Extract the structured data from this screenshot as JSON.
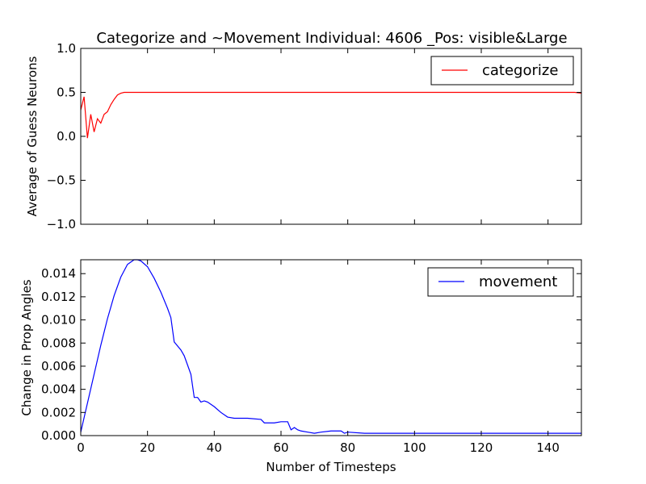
{
  "chart_data": [
    {
      "type": "line",
      "title": "Categorize and ~Movement Individual: 4606 _Pos: visible&Large",
      "xlabel": "",
      "ylabel": "Average of Guess Neurons",
      "xlim": [
        0,
        150
      ],
      "ylim": [
        -1.0,
        1.0
      ],
      "xticks": [
        0,
        20,
        40,
        60,
        80,
        100,
        120,
        140
      ],
      "xtick_labels_visible": false,
      "yticks": [
        -1.0,
        -0.5,
        0.0,
        0.5,
        1.0
      ],
      "ytick_labels": [
        "−1.0",
        "−0.5",
        "0.0",
        "0.5",
        "1.0"
      ],
      "grid": false,
      "legend": "top-right",
      "series": [
        {
          "name": "categorize",
          "color": "#ff0000",
          "x": [
            0,
            1,
            2,
            3,
            4,
            5,
            6,
            7,
            8,
            9,
            10,
            11,
            12,
            13,
            14,
            15,
            20,
            40,
            60,
            80,
            100,
            120,
            140,
            148,
            150
          ],
          "y": [
            0.3,
            0.45,
            -0.02,
            0.25,
            0.05,
            0.2,
            0.15,
            0.25,
            0.28,
            0.36,
            0.42,
            0.47,
            0.49,
            0.5,
            0.5,
            0.5,
            0.5,
            0.5,
            0.5,
            0.5,
            0.5,
            0.5,
            0.5,
            0.5,
            0.49
          ]
        }
      ]
    },
    {
      "type": "line",
      "title": "",
      "xlabel": "Number of Timesteps",
      "ylabel": "Change in Prop Angles",
      "xlim": [
        0,
        150
      ],
      "ylim": [
        0,
        0.0152
      ],
      "xticks": [
        0,
        20,
        40,
        60,
        80,
        100,
        120,
        140
      ],
      "xtick_labels": [
        "0",
        "20",
        "40",
        "60",
        "80",
        "100",
        "120",
        "140"
      ],
      "yticks": [
        0.0,
        0.002,
        0.004,
        0.006,
        0.008,
        0.01,
        0.012,
        0.014
      ],
      "ytick_labels": [
        "0.000",
        "0.002",
        "0.004",
        "0.006",
        "0.008",
        "0.010",
        "0.012",
        "0.014"
      ],
      "grid": false,
      "legend": "top-right",
      "series": [
        {
          "name": "movement",
          "color": "#0000ff",
          "x": [
            0,
            2,
            4,
            6,
            8,
            10,
            12,
            14,
            16,
            17,
            18,
            20,
            22,
            24,
            26,
            27,
            28,
            30,
            31,
            32,
            33,
            34,
            35,
            36,
            37,
            38,
            40,
            42,
            44,
            46,
            50,
            54,
            55,
            58,
            60,
            62,
            63,
            64,
            65,
            66,
            68,
            70,
            72,
            75,
            78,
            79,
            80,
            85,
            90,
            100,
            104,
            110,
            120,
            130,
            140,
            150
          ],
          "y": [
            0.0003,
            0.0028,
            0.0053,
            0.0078,
            0.0101,
            0.0121,
            0.0137,
            0.0148,
            0.0152,
            0.0152,
            0.0151,
            0.0146,
            0.0136,
            0.0124,
            0.011,
            0.0102,
            0.0081,
            0.0074,
            0.0069,
            0.0061,
            0.0053,
            0.0033,
            0.0033,
            0.0029,
            0.003,
            0.0029,
            0.0025,
            0.002,
            0.0016,
            0.0015,
            0.0015,
            0.0014,
            0.0011,
            0.0011,
            0.0012,
            0.0012,
            0.0005,
            0.0007,
            0.0005,
            0.0004,
            0.0003,
            0.0002,
            0.0003,
            0.0004,
            0.0004,
            0.0002,
            0.0003,
            0.0002,
            0.0002,
            0.0002,
            0.0002,
            0.0002,
            0.0002,
            0.0002,
            0.0002,
            0.0002
          ]
        }
      ]
    }
  ]
}
